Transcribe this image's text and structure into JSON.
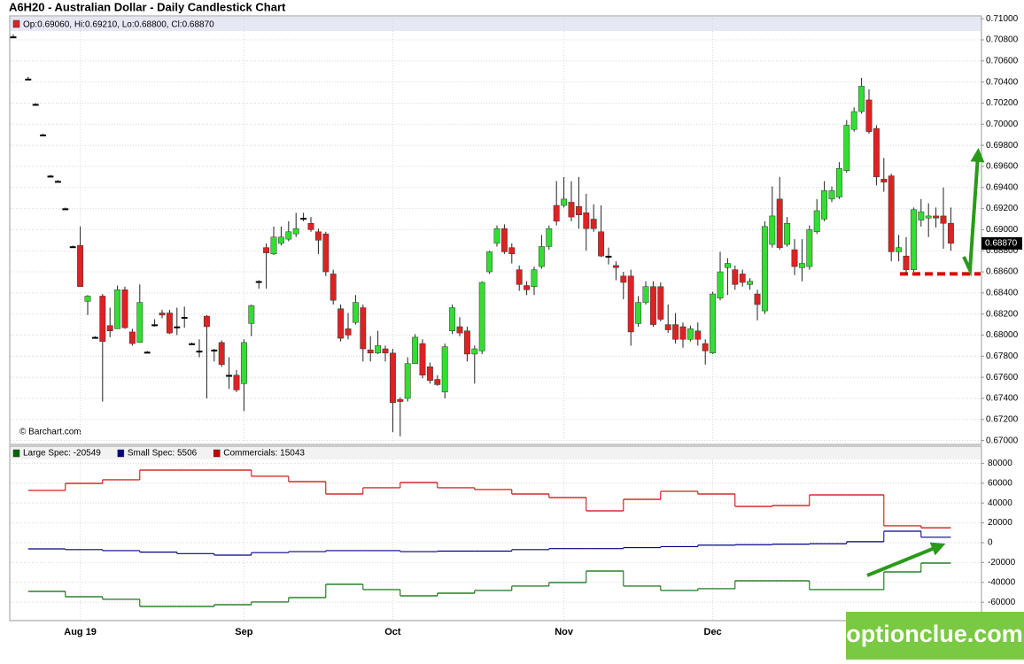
{
  "header": {
    "title": "A6H20 - Australian Dollar - Daily Candlestick Chart"
  },
  "chart_data": [
    {
      "type": "candlestick",
      "ohlc_legend": "Op:0.69060, Hi:0.69210, Lo:0.68800, Cl:0.68870",
      "source": "© Barchart.com",
      "categories": [
        null,
        null,
        null,
        null,
        null,
        null,
        null,
        null,
        null,
        "Aug 19",
        null,
        null,
        null,
        null,
        null,
        null,
        null,
        null,
        null,
        null,
        null,
        null,
        null,
        null,
        null,
        null,
        null,
        null,
        null,
        null,
        null,
        "Sep",
        null,
        null,
        null,
        null,
        null,
        null,
        null,
        null,
        null,
        null,
        null,
        null,
        null,
        null,
        null,
        null,
        null,
        null,
        null,
        "Oct",
        null,
        null,
        null,
        null,
        null,
        null,
        null,
        null,
        null,
        null,
        null,
        null,
        null,
        null,
        null,
        null,
        null,
        null,
        null,
        null,
        null,
        null,
        "Nov",
        null,
        null,
        null,
        null,
        null,
        null,
        null,
        null,
        null,
        null,
        null,
        null,
        null,
        null,
        null,
        null,
        null,
        null,
        null,
        "Dec",
        null,
        null,
        null,
        null,
        null,
        null,
        null,
        null,
        null,
        null,
        null,
        null,
        null,
        null,
        null,
        null,
        null,
        null,
        null,
        null,
        null,
        null,
        null,
        null,
        null,
        null,
        null,
        null,
        null,
        null,
        null,
        null
      ],
      "open": [
        0.7083,
        null,
        0.7043,
        0.7019,
        0.699,
        0.6951,
        0.6946,
        0.692,
        0.6884,
        0.6885,
        0.6832,
        0.6798,
        0.6837,
        0.6809,
        0.6806,
        0.6843,
        0.6803,
        0.6793,
        0.6784,
        0.681,
        0.6821,
        0.6821,
        0.6808,
        0.6817,
        0.6792,
        0.6785,
        0.6818,
        0.6786,
        0.6793,
        0.6762,
        0.6762,
        0.6754,
        0.6811,
        0.6851,
        0.6883,
        0.6877,
        0.6887,
        0.6891,
        0.6896,
        0.6911,
        0.6906,
        0.6898,
        0.6896,
        0.6858,
        0.6825,
        0.6806,
        0.6812,
        0.6826,
        0.6786,
        0.6783,
        0.6787,
        0.6783,
        0.6739,
        0.674,
        0.6773,
        0.6792,
        0.677,
        0.6758,
        0.6746,
        0.6804,
        0.6808,
        0.6804,
        0.6782,
        0.6785,
        0.686,
        0.6887,
        0.6901,
        0.6883,
        0.6862,
        0.6847,
        0.6846,
        0.6865,
        0.6884,
        0.6923,
        0.6923,
        0.6926,
        0.6922,
        0.6916,
        0.691,
        0.6898,
        0.6875,
        0.6866,
        0.6856,
        0.6856,
        0.6811,
        0.6831,
        0.6846,
        0.6846,
        0.681,
        0.681,
        0.6808,
        0.6796,
        0.6804,
        0.6792,
        0.6783,
        0.6835,
        0.6864,
        0.6862,
        0.6858,
        0.6848,
        0.6839,
        0.6823,
        0.6886,
        0.6929,
        0.6886,
        0.6881,
        0.6864,
        0.6865,
        0.6898,
        0.691,
        0.6929,
        0.6931,
        0.6956,
        0.6995,
        0.7012,
        0.7023,
        0.6996,
        0.6948,
        0.6951,
        0.6879,
        0.6875,
        0.6862,
        0.6909,
        0.6911,
        0.6913,
        0.6913,
        0.6906
      ],
      "high": [
        0.7085,
        null,
        0.7045,
        0.702,
        0.6991,
        0.6952,
        0.6947,
        0.6921,
        0.6885,
        0.6903,
        0.6838,
        0.6799,
        0.6839,
        0.6826,
        0.6847,
        0.6846,
        0.6806,
        0.6848,
        0.6785,
        0.6815,
        0.6824,
        0.6824,
        0.6826,
        0.6827,
        0.6793,
        0.6796,
        0.6819,
        0.6787,
        0.6795,
        0.6779,
        0.6767,
        0.6796,
        0.6829,
        0.6852,
        0.6887,
        0.6903,
        0.6903,
        0.6908,
        0.6916,
        0.6916,
        0.6912,
        0.6901,
        0.6898,
        0.6862,
        0.6829,
        0.6821,
        0.6838,
        0.6829,
        0.6799,
        0.6804,
        0.679,
        0.6787,
        0.6741,
        0.6779,
        0.6801,
        0.6796,
        0.6774,
        0.6762,
        0.6792,
        0.6829,
        0.6817,
        0.6808,
        0.679,
        0.6851,
        0.688,
        0.6904,
        0.6905,
        0.6887,
        0.6866,
        0.6851,
        0.6865,
        0.6895,
        0.6904,
        0.6946,
        0.695,
        0.6946,
        0.695,
        0.6934,
        0.6924,
        0.6923,
        0.6883,
        0.687,
        0.686,
        0.6862,
        0.6837,
        0.6851,
        0.6851,
        0.685,
        0.6829,
        0.6821,
        0.6812,
        0.6809,
        0.6812,
        0.6796,
        0.6841,
        0.6879,
        0.6873,
        0.6866,
        0.6862,
        0.6854,
        0.6843,
        0.6908,
        0.6941,
        0.695,
        0.6912,
        0.6891,
        0.6891,
        0.6904,
        0.6929,
        0.6946,
        0.6941,
        0.6964,
        0.7004,
        0.7016,
        0.7044,
        0.7033,
        0.6999,
        0.6968,
        0.6953,
        0.6895,
        0.6893,
        0.6921,
        0.6929,
        0.6925,
        0.6921,
        0.694,
        0.6921
      ],
      "low": [
        0.7082,
        null,
        0.7042,
        0.7018,
        0.6989,
        0.695,
        0.6945,
        0.6919,
        0.6883,
        0.6846,
        0.6819,
        0.6797,
        0.6737,
        0.6798,
        0.6806,
        0.6806,
        0.679,
        0.6793,
        0.6783,
        0.6808,
        0.6816,
        0.6801,
        0.68,
        0.6807,
        0.6791,
        0.6779,
        0.674,
        0.6775,
        0.677,
        0.6749,
        0.6746,
        0.6728,
        0.6799,
        0.6844,
        0.6844,
        0.6876,
        0.6885,
        0.6889,
        0.6893,
        0.6908,
        0.6898,
        0.6877,
        0.6856,
        0.6829,
        0.6794,
        0.6796,
        0.681,
        0.6775,
        0.6775,
        0.6782,
        0.6775,
        0.6708,
        0.6704,
        0.6737,
        0.6773,
        0.6759,
        0.6754,
        0.6752,
        0.674,
        0.6801,
        0.6799,
        0.6775,
        0.6754,
        0.6782,
        0.6858,
        0.6884,
        0.6877,
        0.6868,
        0.6842,
        0.6838,
        0.6838,
        0.6863,
        0.6881,
        0.6904,
        0.6921,
        0.6908,
        0.6901,
        0.688,
        0.6898,
        0.6874,
        0.6867,
        0.6852,
        0.6834,
        0.679,
        0.6808,
        0.6829,
        0.6808,
        0.6813,
        0.6802,
        0.6792,
        0.6788,
        0.6794,
        0.679,
        0.6772,
        0.6782,
        0.6833,
        0.6838,
        0.6843,
        0.6846,
        0.6843,
        0.6814,
        0.682,
        0.6883,
        0.6881,
        0.6884,
        0.6857,
        0.6851,
        0.6862,
        0.6896,
        0.6908,
        0.6926,
        0.6929,
        0.6954,
        0.6993,
        0.701,
        0.6991,
        0.6942,
        0.6936,
        0.687,
        0.687,
        0.6858,
        0.686,
        0.6903,
        0.6893,
        0.6902,
        0.6882,
        0.688
      ],
      "close": [
        0.7083,
        null,
        0.7043,
        0.7019,
        0.699,
        0.6951,
        0.6946,
        0.692,
        0.6884,
        0.6846,
        0.6837,
        0.6798,
        0.6794,
        0.6804,
        0.6843,
        0.6807,
        0.6792,
        0.6831,
        0.6784,
        0.681,
        0.6819,
        0.6802,
        0.6808,
        0.6817,
        0.6792,
        0.6785,
        0.6808,
        0.6786,
        0.6772,
        0.6762,
        0.6748,
        0.6793,
        0.6828,
        0.6851,
        0.6878,
        0.6893,
        0.6893,
        0.6898,
        0.6901,
        0.6911,
        0.69,
        0.689,
        0.686,
        0.6833,
        0.6797,
        0.68,
        0.6831,
        0.6787,
        0.6783,
        0.679,
        0.6783,
        0.6736,
        0.6737,
        0.6773,
        0.6798,
        0.6762,
        0.6757,
        0.6753,
        0.6789,
        0.6826,
        0.6802,
        0.6782,
        0.6787,
        0.685,
        0.6879,
        0.6901,
        0.6879,
        0.6877,
        0.6848,
        0.6843,
        0.6862,
        0.6884,
        0.6901,
        0.6908,
        0.6929,
        0.6912,
        0.6914,
        0.6901,
        0.6901,
        0.6875,
        0.6875,
        0.6864,
        0.685,
        0.6803,
        0.6831,
        0.6846,
        0.681,
        0.6815,
        0.6805,
        0.6796,
        0.6796,
        0.6806,
        0.6796,
        0.6785,
        0.6839,
        0.686,
        0.6868,
        0.6848,
        0.685,
        0.6851,
        0.6829,
        0.6903,
        0.6913,
        0.6883,
        0.6906,
        0.6865,
        0.6868,
        0.69,
        0.6918,
        0.6937,
        0.6937,
        0.6958,
        0.6999,
        0.7012,
        0.7036,
        0.6993,
        0.695,
        0.6945,
        0.6879,
        0.6883,
        0.6862,
        0.6919,
        0.6917,
        0.6913,
        0.6911,
        0.6906,
        0.6887
      ],
      "up_color": "#33dd33",
      "down_color": "#dd2222",
      "flat_color": "#000000",
      "ylim": [
        0.6698,
        0.7101
      ],
      "yticks": [
        {
          "value": 0.67,
          "label": "0.67000"
        },
        {
          "value": 0.672,
          "label": "0.67200"
        },
        {
          "value": 0.674,
          "label": "0.67400"
        },
        {
          "value": 0.676,
          "label": "0.67600"
        },
        {
          "value": 0.678,
          "label": "0.67800"
        },
        {
          "value": 0.68,
          "label": "0.68000"
        },
        {
          "value": 0.682,
          "label": "0.68200"
        },
        {
          "value": 0.684,
          "label": "0.68400"
        },
        {
          "value": 0.686,
          "label": "0.68600"
        },
        {
          "value": 0.688,
          "label": "0.68800"
        },
        {
          "value": 0.69,
          "label": "0.69000"
        },
        {
          "value": 0.692,
          "label": "0.69200"
        },
        {
          "value": 0.694,
          "label": "0.69400"
        },
        {
          "value": 0.696,
          "label": "0.69600"
        },
        {
          "value": 0.698,
          "label": "0.69800"
        },
        {
          "value": 0.7,
          "label": "0.70000"
        },
        {
          "value": 0.702,
          "label": "0.70200"
        },
        {
          "value": 0.704,
          "label": "0.70400"
        },
        {
          "value": 0.706,
          "label": "0.70600"
        },
        {
          "value": 0.708,
          "label": "0.70800"
        },
        {
          "value": 0.71,
          "label": "0.71000"
        }
      ],
      "grid": true,
      "last_price": {
        "value": 0.6887,
        "label": "0.68870"
      },
      "support_level": 0.6858,
      "support_color": "#dd0000"
    },
    {
      "type": "step",
      "series": [
        {
          "name": "Large Spec: -20549",
          "color": "#006600",
          "values": [
            -49100,
            -54500,
            -57100,
            -64300,
            -64300,
            -62500,
            -59800,
            -55400,
            -42000,
            -47300,
            -53600,
            -50900,
            -48200,
            -43700,
            -40200,
            -28600,
            -43700,
            -48200,
            -46400,
            -38400,
            -38400,
            -47300,
            -47300,
            -29500,
            -20549
          ]
        },
        {
          "name": "Small Spec: 5506",
          "color": "#000088",
          "values": [
            -6300,
            -7000,
            -8000,
            -9500,
            -11000,
            -12500,
            -10000,
            -9000,
            -8000,
            -8000,
            -9000,
            -8500,
            -8500,
            -7000,
            -6000,
            -6000,
            -5000,
            -4000,
            -2500,
            -2000,
            -1500,
            -1000,
            1000,
            11600,
            5506
          ]
        },
        {
          "name": "Commercials: 15043",
          "color": "#cc0000",
          "values": [
            52700,
            59800,
            63400,
            73200,
            73200,
            73200,
            67000,
            61600,
            49100,
            55400,
            60700,
            55400,
            53600,
            49100,
            45500,
            32100,
            43700,
            51800,
            49100,
            36600,
            37500,
            48200,
            48200,
            17000,
            15043
          ]
        }
      ],
      "ylim": [
        -77700,
        96400
      ],
      "yticks": [
        80000,
        60000,
        40000,
        20000,
        0,
        -20000,
        -40000,
        -60000
      ],
      "grid": true
    }
  ],
  "watermark": "optionclue.com"
}
